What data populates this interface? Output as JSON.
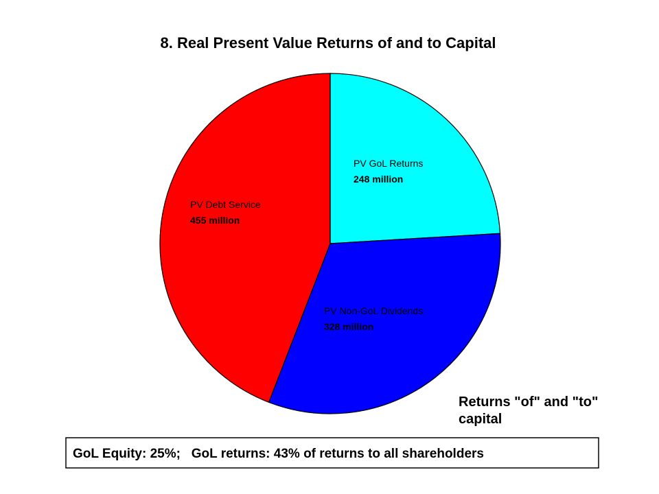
{
  "chart_data": {
    "type": "pie",
    "title": "8.  Real Present Value Returns of and to Capital",
    "categories": [
      "PV GoL Returns",
      "PV Non-GoL Dividends",
      "PV Debt Service"
    ],
    "values": [
      248,
      328,
      455
    ],
    "value_labels": [
      "248 million",
      "328 million",
      "455 million"
    ],
    "colors": [
      "#00ffff",
      "#0000ff",
      "#ff0000"
    ],
    "annotation": [
      "Returns \"of\" and \"to\"",
      "capital"
    ],
    "note": "GoL Equity: 25%;   GoL returns: 43% of returns to all shareholders"
  }
}
